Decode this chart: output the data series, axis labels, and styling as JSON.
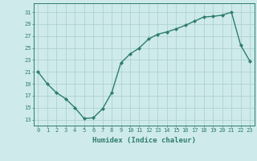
{
  "x": [
    0,
    1,
    2,
    3,
    4,
    5,
    6,
    7,
    8,
    9,
    10,
    11,
    12,
    13,
    14,
    15,
    16,
    17,
    18,
    19,
    20,
    21,
    22,
    23
  ],
  "y": [
    21,
    19,
    17.5,
    16.5,
    15,
    13.2,
    13.3,
    14.8,
    17.5,
    22.5,
    24,
    25,
    26.5,
    27.3,
    27.7,
    28.2,
    28.8,
    29.5,
    30.2,
    30.3,
    30.5,
    31,
    25.5,
    22.8
  ],
  "line_color": "#2e7d6e",
  "marker": "D",
  "markersize": 2.0,
  "linewidth": 1.0,
  "xlabel": "Humidex (Indice chaleur)",
  "xlabel_fontsize": 6.5,
  "bg_color": "#ceeaea",
  "grid_color": "#aacece",
  "yticks": [
    13,
    15,
    17,
    19,
    21,
    23,
    25,
    27,
    29,
    31
  ],
  "xticks": [
    0,
    1,
    2,
    3,
    4,
    5,
    6,
    7,
    8,
    9,
    10,
    11,
    12,
    13,
    14,
    15,
    16,
    17,
    18,
    19,
    20,
    21,
    22,
    23
  ],
  "ylim": [
    12.0,
    32.5
  ],
  "xlim": [
    -0.5,
    23.5
  ],
  "tick_fontsize": 5.0
}
